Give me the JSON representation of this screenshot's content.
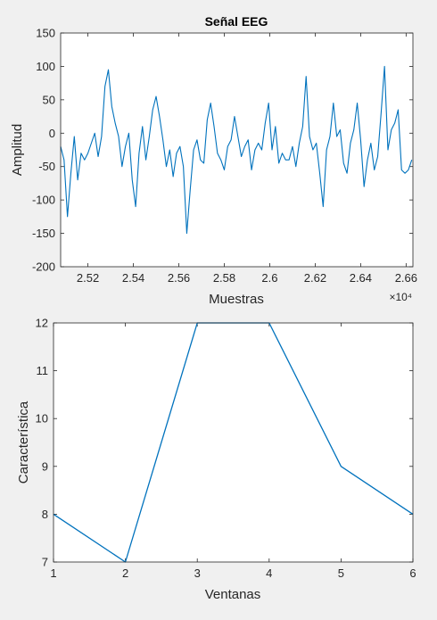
{
  "chart_data": [
    {
      "type": "line",
      "title": "Señal EEG",
      "xlabel": "Muestras",
      "ylabel": "Amplitud",
      "x_exponent_label": "×10⁴",
      "xlim": [
        25080,
        26630
      ],
      "ylim": [
        -200,
        150
      ],
      "x_ticks": [
        25200,
        25400,
        25600,
        25800,
        26000,
        26200,
        26400,
        26600
      ],
      "x_tick_labels": [
        "2.52",
        "2.54",
        "2.56",
        "2.58",
        "2.6",
        "2.62",
        "2.64",
        "2.66"
      ],
      "y_ticks": [
        -200,
        -150,
        -100,
        -50,
        0,
        50,
        100,
        150
      ],
      "y_tick_labels": [
        "-200",
        "-150",
        "-100",
        "-50",
        "0",
        "50",
        "100",
        "150"
      ],
      "grid": false,
      "line_color": "#0072bd",
      "series": [
        {
          "x": [
            25080,
            25095,
            25110,
            25125,
            25140,
            25155,
            25170,
            25185,
            25200,
            25215,
            25230,
            25245,
            25260,
            25275,
            25290,
            25305,
            25320,
            25335,
            25350,
            25365,
            25380,
            25395,
            25410,
            25425,
            25440,
            25455,
            25470,
            25485,
            25500,
            25515,
            25530,
            25545,
            25560,
            25575,
            25590,
            25605,
            25620,
            25635,
            25650,
            25665,
            25680,
            25695,
            25710,
            25725,
            25740,
            25755,
            25770,
            25785,
            25800,
            25815,
            25830,
            25845,
            25860,
            25875,
            25890,
            25905,
            25920,
            25935,
            25950,
            25965,
            25980,
            25995,
            26010,
            26025,
            26040,
            26055,
            26070,
            26085,
            26100,
            26115,
            26130,
            26145,
            26160,
            26175,
            26190,
            26205,
            26220,
            26235,
            26250,
            26265,
            26280,
            26295,
            26310,
            26325,
            26340,
            26355,
            26370,
            26385,
            26400,
            26415,
            26430,
            26445,
            26460,
            26475,
            26490,
            26505,
            26520,
            26535,
            26550,
            26565,
            26580,
            26595,
            26610,
            26625
          ],
          "y": [
            -20,
            -40,
            -125,
            -60,
            -5,
            -70,
            -30,
            -40,
            -30,
            -15,
            0,
            -35,
            -5,
            70,
            95,
            40,
            15,
            -5,
            -50,
            -20,
            0,
            -70,
            -110,
            -30,
            10,
            -40,
            -5,
            35,
            55,
            25,
            -10,
            -50,
            -25,
            -65,
            -30,
            -20,
            -50,
            -150,
            -85,
            -25,
            -10,
            -40,
            -45,
            20,
            45,
            10,
            -30,
            -40,
            -55,
            -20,
            -10,
            25,
            -5,
            -35,
            -20,
            -10,
            -55,
            -25,
            -15,
            -25,
            15,
            45,
            -25,
            10,
            -45,
            -30,
            -40,
            -40,
            -20,
            -50,
            -15,
            10,
            85,
            -5,
            -25,
            -15,
            -60,
            -110,
            -25,
            -5,
            45,
            -5,
            5,
            -45,
            -60,
            -15,
            5,
            45,
            -10,
            -80,
            -40,
            -15,
            -55,
            -35,
            30,
            100,
            -25,
            5,
            15,
            35,
            -55,
            -60,
            -55,
            -40
          ]
        }
      ]
    },
    {
      "type": "line",
      "title": "",
      "xlabel": "Ventanas",
      "ylabel": "Característica",
      "xlim": [
        1,
        6
      ],
      "ylim": [
        7,
        12
      ],
      "x_ticks": [
        1,
        2,
        3,
        4,
        5,
        6
      ],
      "x_tick_labels": [
        "1",
        "2",
        "3",
        "4",
        "5",
        "6"
      ],
      "y_ticks": [
        7,
        8,
        9,
        10,
        11,
        12
      ],
      "y_tick_labels": [
        "7",
        "8",
        "9",
        "10",
        "11",
        "12"
      ],
      "grid": false,
      "line_color": "#0072bd",
      "series": [
        {
          "x": [
            1,
            2,
            3,
            4,
            5,
            6
          ],
          "y": [
            8,
            7,
            12,
            12,
            9,
            8
          ]
        }
      ]
    }
  ]
}
